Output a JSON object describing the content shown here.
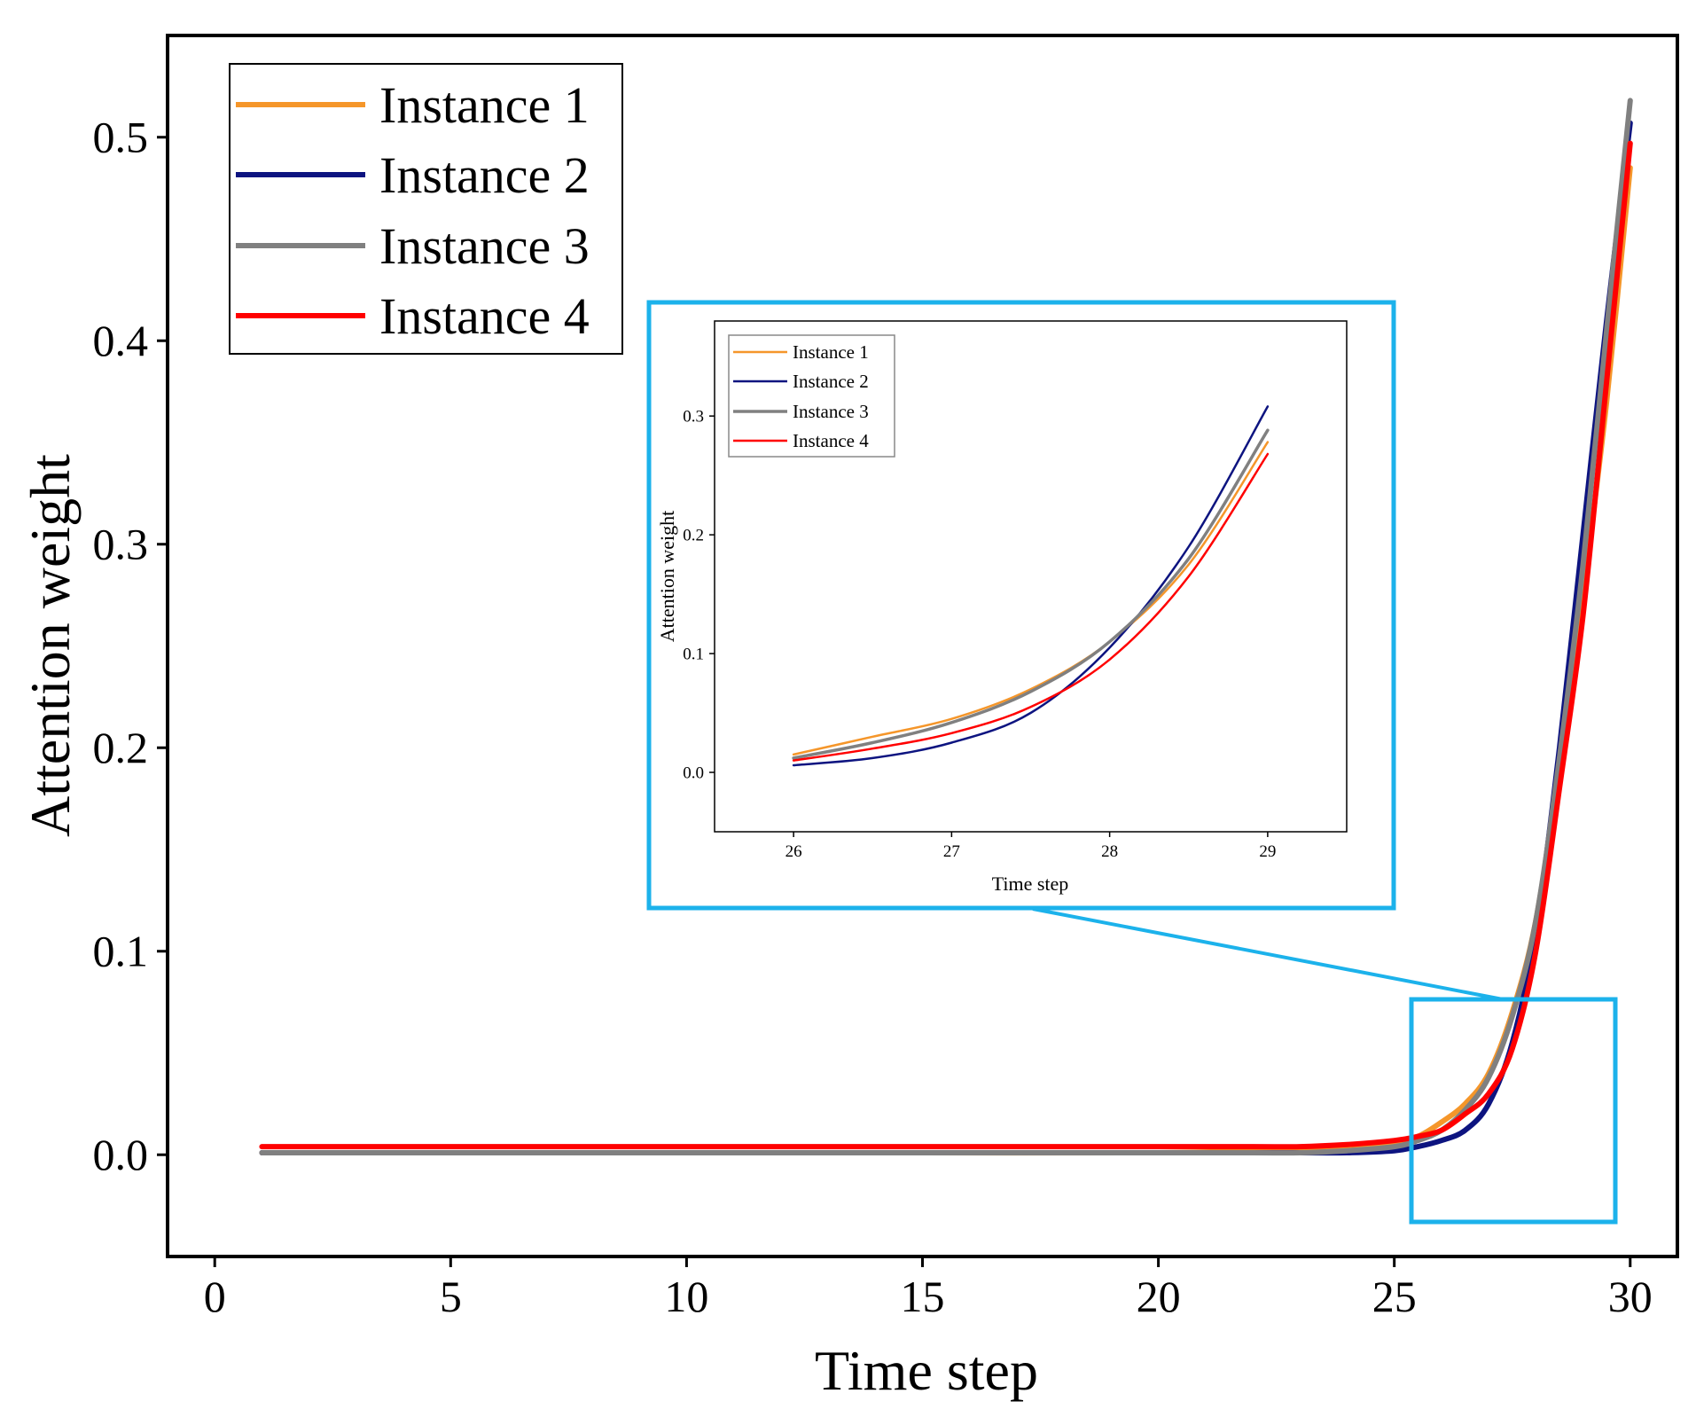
{
  "colors": {
    "instance1": "#F5962A",
    "instance2": "#0D1480",
    "instance3": "#808080",
    "instance4": "#FF0000",
    "highlight": "#1CB2EB"
  },
  "chart_data": [
    {
      "id": "main",
      "type": "line",
      "title": "",
      "xlabel": "Time step",
      "ylabel": "Attention weight",
      "xlim": [
        -1,
        31
      ],
      "ylim": [
        -0.05,
        0.55
      ],
      "xticks": [
        0,
        5,
        10,
        15,
        20,
        25,
        30
      ],
      "xtick_labels": [
        "0",
        "5",
        "10",
        "15",
        "20",
        "25",
        "30"
      ],
      "yticks": [
        0.0,
        0.1,
        0.2,
        0.3,
        0.4,
        0.5
      ],
      "ytick_labels": [
        "0.0",
        "0.1",
        "0.2",
        "0.3",
        "0.4",
        "0.5"
      ],
      "legend_position": "top-left",
      "x": [
        1,
        5,
        10,
        15,
        20,
        22,
        23,
        24,
        25,
        25.5,
        26,
        26.5,
        27,
        27.5,
        28,
        28.5,
        29,
        29.5,
        30
      ],
      "series": [
        {
          "name": "Instance 1",
          "color_key": "instance1",
          "values": [
            0.001,
            0.001,
            0.001,
            0.001,
            0.001,
            0.002,
            0.002,
            0.003,
            0.006,
            0.009,
            0.016,
            0.025,
            0.04,
            0.07,
            0.115,
            0.19,
            0.275,
            0.37,
            0.485
          ]
        },
        {
          "name": "Instance 2",
          "color_key": "instance2",
          "values": [
            0.001,
            0.001,
            0.001,
            0.001,
            0.001,
            0.001,
            0.001,
            0.001,
            0.002,
            0.004,
            0.007,
            0.012,
            0.025,
            0.055,
            0.11,
            0.2,
            0.305,
            0.41,
            0.507
          ]
        },
        {
          "name": "Instance 3",
          "color_key": "instance3",
          "values": [
            0.001,
            0.001,
            0.001,
            0.001,
            0.001,
            0.001,
            0.001,
            0.002,
            0.004,
            0.007,
            0.012,
            0.022,
            0.038,
            0.068,
            0.115,
            0.195,
            0.29,
            0.405,
            0.518
          ]
        },
        {
          "name": "Instance 4",
          "color_key": "instance4",
          "values": [
            0.004,
            0.004,
            0.004,
            0.004,
            0.004,
            0.004,
            0.004,
            0.005,
            0.007,
            0.009,
            0.012,
            0.02,
            0.03,
            0.052,
            0.1,
            0.18,
            0.265,
            0.38,
            0.497
          ]
        }
      ]
    },
    {
      "id": "inset",
      "type": "line",
      "title": "",
      "xlabel": "Time step",
      "ylabel": "Attention weight",
      "xlim": [
        25.5,
        29.5
      ],
      "ylim": [
        -0.05,
        0.38
      ],
      "xticks": [
        26,
        27,
        28,
        29
      ],
      "xtick_labels": [
        "26",
        "27",
        "28",
        "29"
      ],
      "yticks": [
        0.0,
        0.1,
        0.2,
        0.3
      ],
      "ytick_labels": [
        "0.0",
        "0.1",
        "0.2",
        "0.3"
      ],
      "legend_position": "top-left",
      "x": [
        26,
        26.5,
        27,
        27.5,
        28,
        28.5,
        29
      ],
      "series": [
        {
          "name": "Instance 1",
          "color_key": "instance1",
          "values": [
            0.015,
            0.03,
            0.045,
            0.07,
            0.11,
            0.175,
            0.278
          ]
        },
        {
          "name": "Instance 2",
          "color_key": "instance2",
          "values": [
            0.006,
            0.012,
            0.025,
            0.05,
            0.105,
            0.19,
            0.308
          ]
        },
        {
          "name": "Instance 3",
          "color_key": "instance3",
          "values": [
            0.012,
            0.025,
            0.042,
            0.068,
            0.11,
            0.18,
            0.288
          ]
        },
        {
          "name": "Instance 4",
          "color_key": "instance4",
          "values": [
            0.01,
            0.02,
            0.033,
            0.055,
            0.095,
            0.165,
            0.268
          ]
        }
      ]
    }
  ]
}
